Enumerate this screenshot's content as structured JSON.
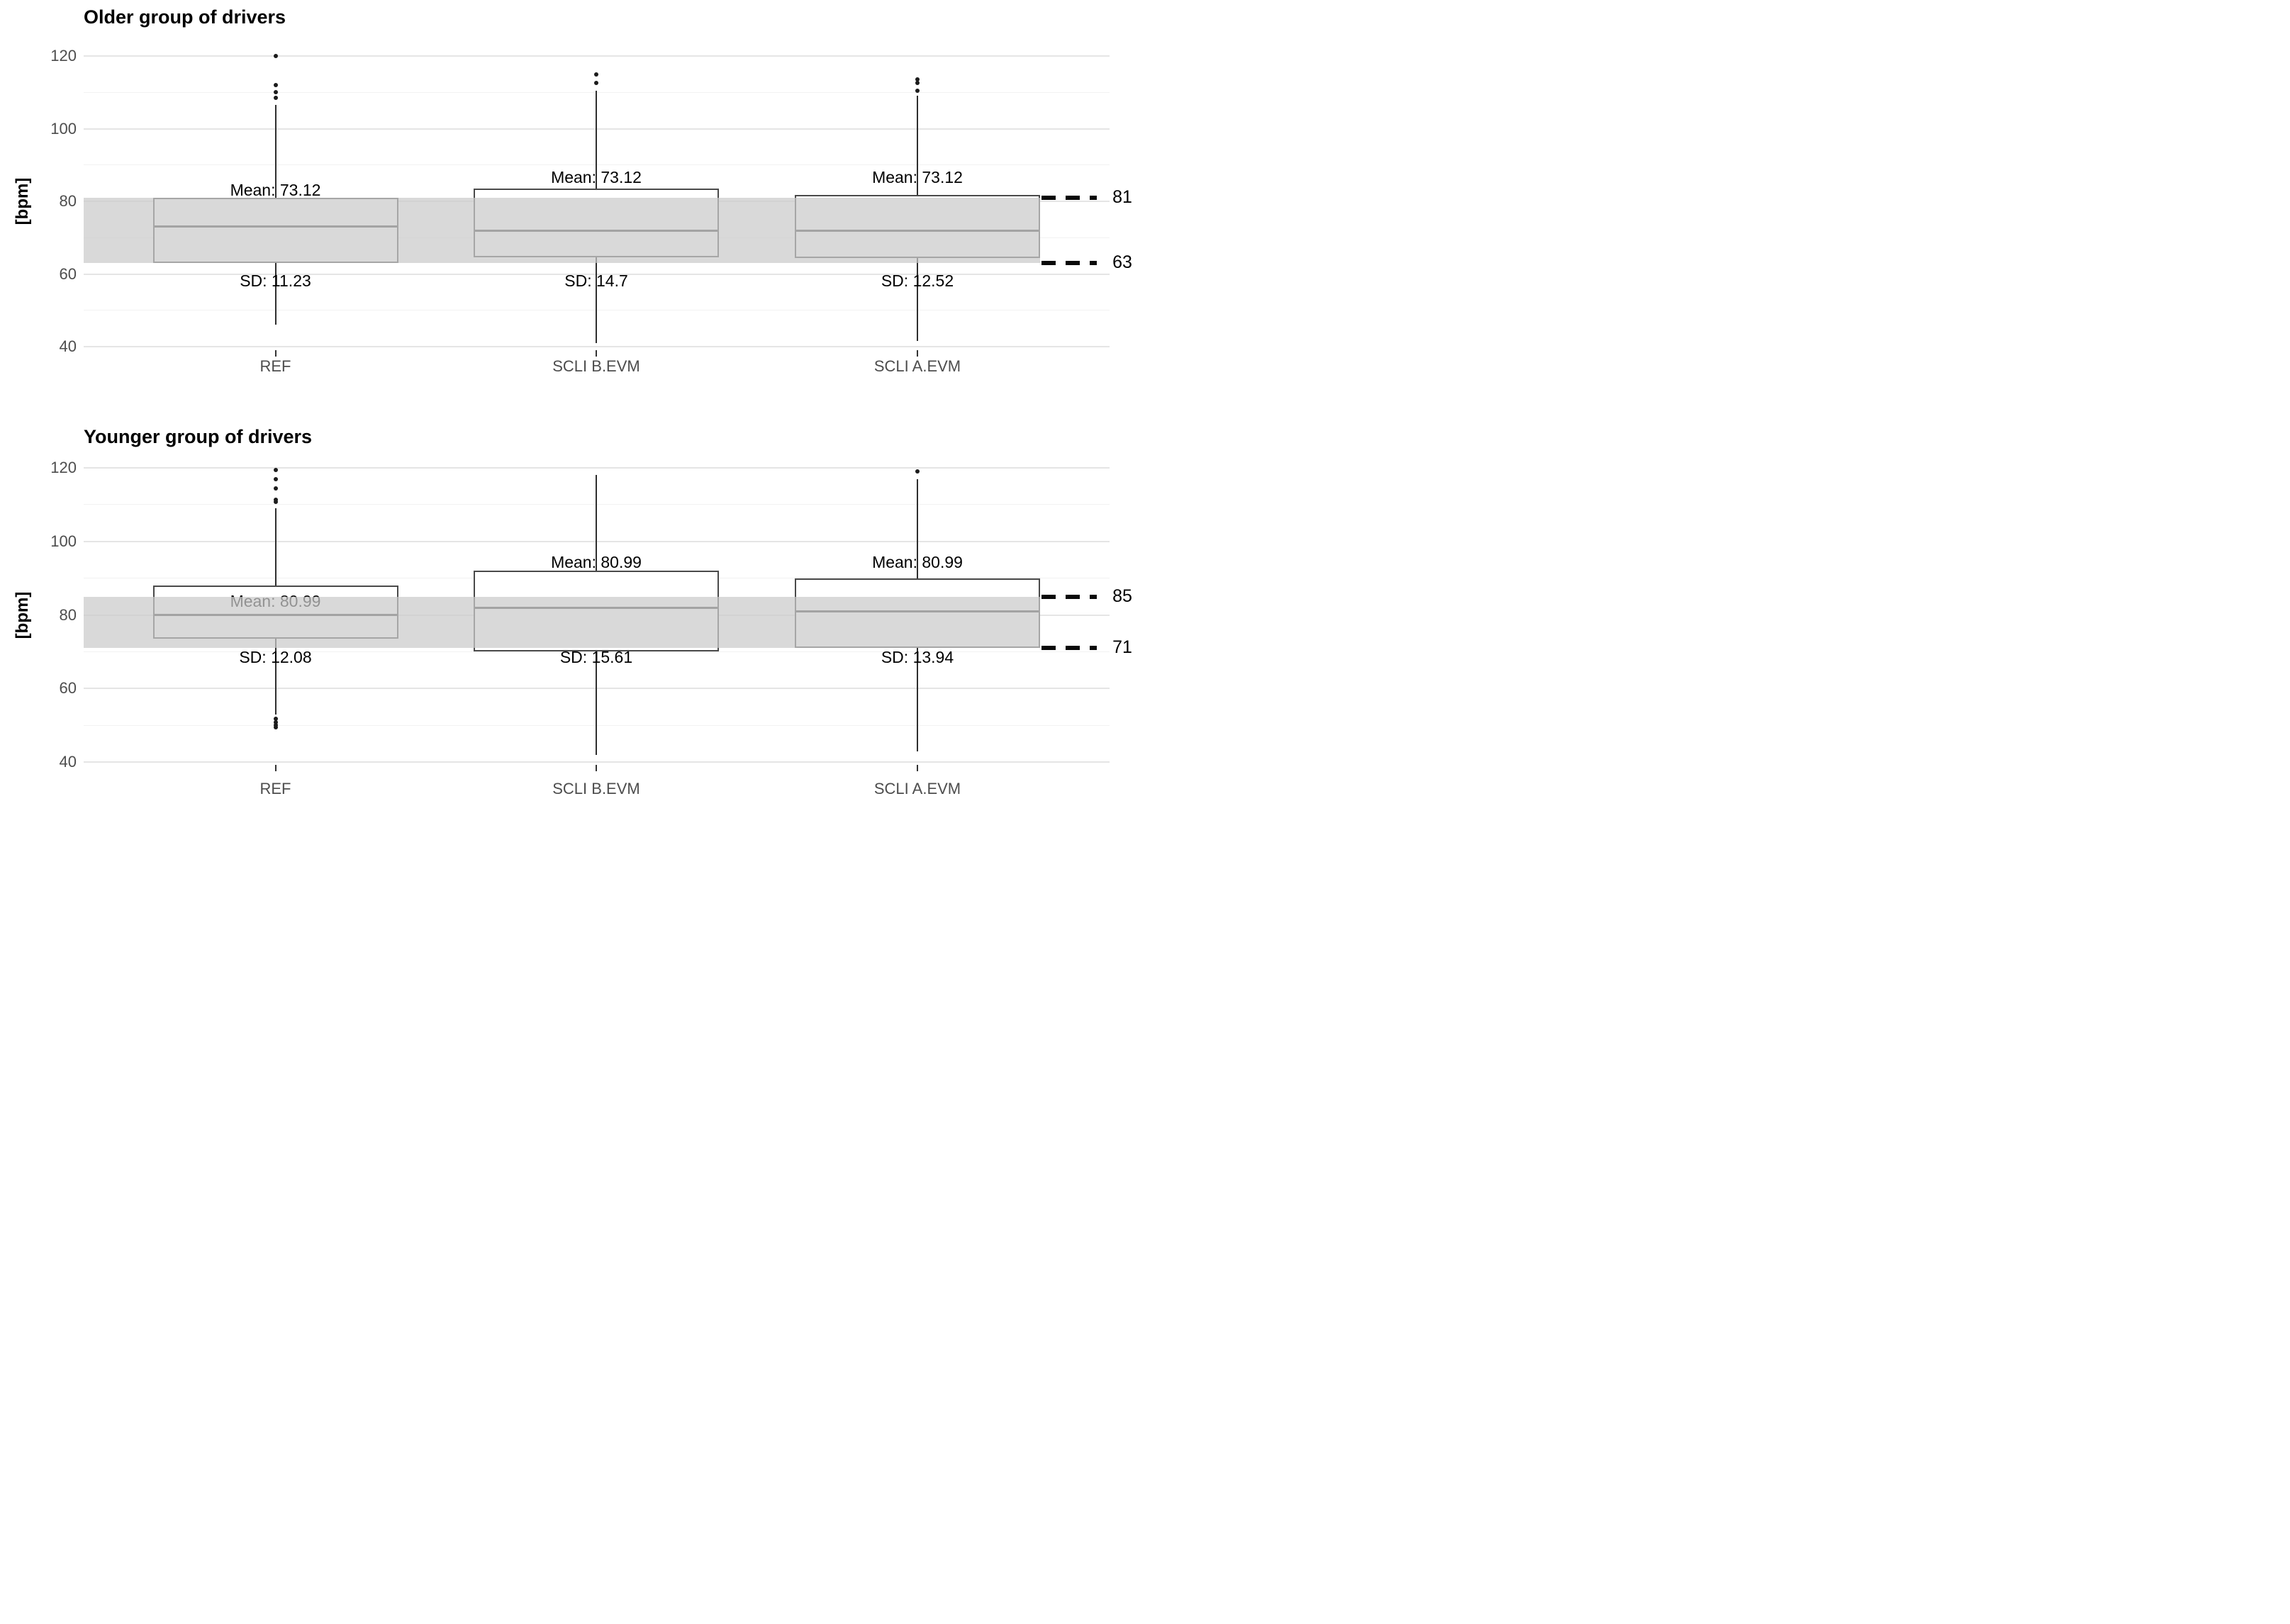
{
  "colors": {
    "background": "#ffffff",
    "band_fill": "#d2d2d2",
    "box_border": "#4a4a4a",
    "median_line": "#3f3f3f",
    "whisker": "#2e2e2e",
    "outlier_dot": "#1c1c1c",
    "grid_major": "#e5e5e5",
    "grid_minor": "#f2f2f2",
    "tick_label": "#4d4d4d",
    "annotation_text": "#000000",
    "reference_dash": "#0a0a0a"
  },
  "chart_data": [
    {
      "type": "boxplot",
      "title": "Older group of drivers",
      "ylabel": "[bpm]",
      "xlabel": "",
      "ylim": [
        38,
        124
      ],
      "yticks": [
        40,
        60,
        80,
        100,
        120
      ],
      "yminor": [
        50,
        70,
        90,
        110
      ],
      "grid": true,
      "legend": false,
      "categories": [
        "REF",
        "SCLI B.EVM",
        "SCLI A.EVM"
      ],
      "band": {
        "low": 63,
        "high": 81,
        "low_label": "63",
        "high_label": "81"
      },
      "series": [
        {
          "category": "REF",
          "mean": 73.12,
          "sd": 11.23,
          "mean_label": "Mean: 73.12",
          "sd_label": "SD: 11.23",
          "mean_label_at": 83,
          "sd_label_at": 58,
          "mean_label_under_band": false,
          "q1": 63,
          "median": 73,
          "q3": 81,
          "whisker_low": 46,
          "whisker_high": 106.5,
          "outliers_high": [
            120,
            112,
            110,
            108.5
          ],
          "outliers_low": []
        },
        {
          "category": "SCLI B.EVM",
          "mean": 73.12,
          "sd": 14.7,
          "mean_label": "Mean: 73.12",
          "sd_label": "SD: 14.7",
          "mean_label_at": 86.4,
          "sd_label_at": 58,
          "mean_label_under_band": false,
          "q1": 64.5,
          "median": 72,
          "q3": 83.5,
          "whisker_low": 41,
          "whisker_high": 110.5,
          "outliers_high": [
            115,
            112.5
          ],
          "outliers_low": []
        },
        {
          "category": "SCLI A.EVM",
          "mean": 73.12,
          "sd": 12.52,
          "mean_label": "Mean: 73.12",
          "sd_label": "SD: 12.52",
          "mean_label_at": 86.4,
          "sd_label_at": 58,
          "mean_label_under_band": false,
          "q1": 64.3,
          "median": 72,
          "q3": 81.8,
          "whisker_low": 41.5,
          "whisker_high": 109,
          "outliers_high": [
            113.5,
            112.5,
            110.5
          ],
          "outliers_low": []
        }
      ]
    },
    {
      "type": "boxplot",
      "title": "Younger group of drivers",
      "ylabel": "[bpm]",
      "xlabel": "",
      "ylim": [
        38,
        124
      ],
      "yticks": [
        40,
        60,
        80,
        100,
        120
      ],
      "yminor": [
        50,
        70,
        90,
        110
      ],
      "grid": true,
      "legend": false,
      "categories": [
        "REF",
        "SCLI B.EVM",
        "SCLI A.EVM"
      ],
      "band": {
        "low": 71,
        "high": 85,
        "low_label": "71",
        "high_label": "85"
      },
      "series": [
        {
          "category": "REF",
          "mean": 80.99,
          "sd": 12.08,
          "mean_label": "Mean: 80.99",
          "sd_label": "SD: 12.08",
          "mean_label_at": 83.6,
          "sd_label_at": 68.3,
          "mean_label_under_band": true,
          "q1": 73.5,
          "median": 80,
          "q3": 88,
          "whisker_low": 53,
          "whisker_high": 109,
          "outliers_high": [
            119.5,
            117,
            114.5,
            111.4,
            110.7
          ],
          "outliers_low": [
            51.7,
            50.8,
            50.1,
            49.4
          ]
        },
        {
          "category": "SCLI B.EVM",
          "mean": 80.99,
          "sd": 15.61,
          "mean_label": "Mean: 80.99",
          "sd_label": "SD: 15.61",
          "mean_label_at": 94.2,
          "sd_label_at": 68.3,
          "mean_label_under_band": false,
          "q1": 70,
          "median": 82,
          "q3": 92,
          "whisker_low": 42,
          "whisker_high": 118,
          "outliers_high": [],
          "outliers_low": []
        },
        {
          "category": "SCLI A.EVM",
          "mean": 80.99,
          "sd": 13.94,
          "mean_label": "Mean: 80.99",
          "sd_label": "SD: 13.94",
          "mean_label_at": 94.2,
          "sd_label_at": 68.3,
          "mean_label_under_band": false,
          "q1": 71,
          "median": 81,
          "q3": 90,
          "whisker_low": 43,
          "whisker_high": 117,
          "outliers_high": [
            119
          ],
          "outliers_low": []
        }
      ]
    }
  ]
}
